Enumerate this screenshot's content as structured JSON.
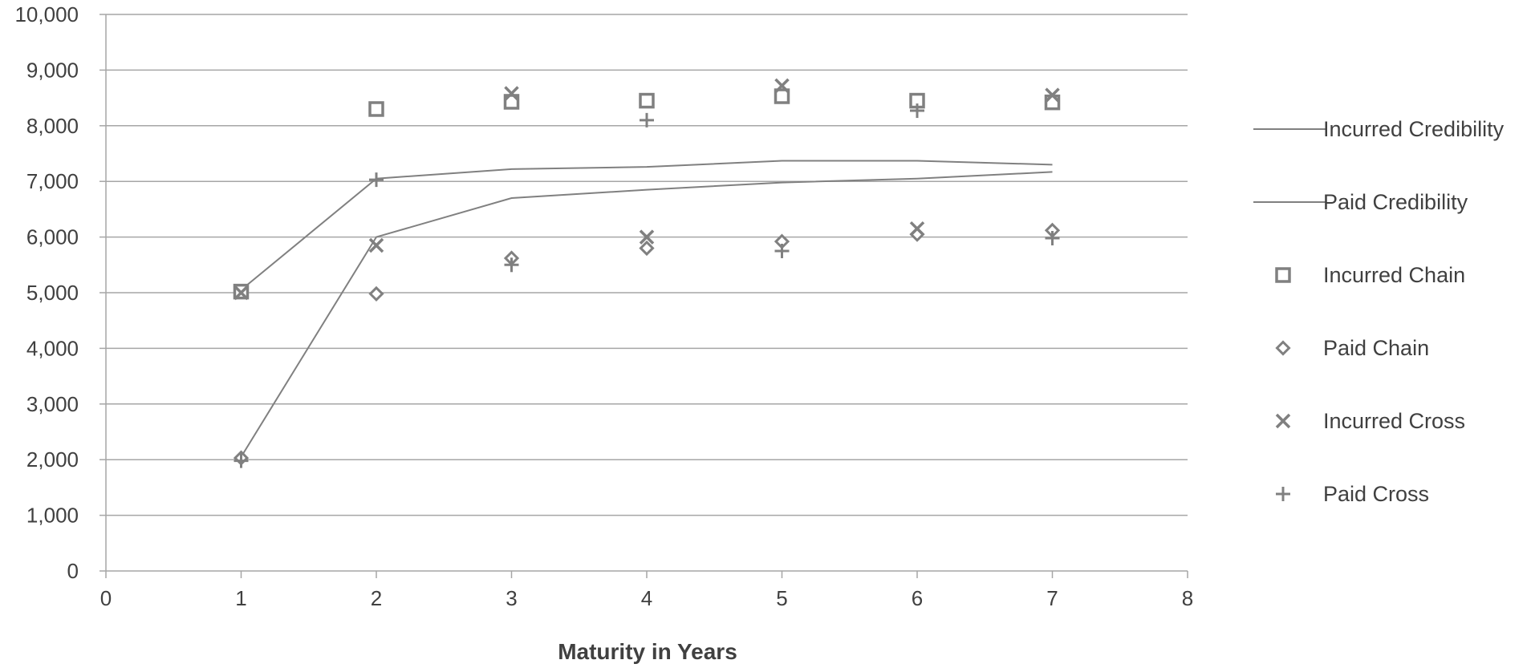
{
  "chart_data": {
    "type": "scatter",
    "title": "",
    "xlabel": "Maturity in Years",
    "ylabel": "",
    "xlim": [
      0,
      8
    ],
    "ylim": [
      0,
      10000
    ],
    "x_ticks": [
      0,
      1,
      2,
      3,
      4,
      5,
      6,
      7,
      8
    ],
    "x_tick_labels": [
      "0",
      "1",
      "2",
      "3",
      "4",
      "5",
      "6",
      "7",
      "8"
    ],
    "y_ticks": [
      0,
      1000,
      2000,
      3000,
      4000,
      5000,
      6000,
      7000,
      8000,
      9000,
      10000
    ],
    "y_tick_labels": [
      "0",
      "1,000",
      "2,000",
      "3,000",
      "4,000",
      "5,000",
      "6,000",
      "7,000",
      "8,000",
      "9,000",
      "10,000"
    ],
    "grid": "horizontal",
    "legend_position": "right",
    "series_color": "#808080",
    "line_color": "#808080",
    "series": [
      {
        "name": "Incurred Credibility",
        "kind": "line",
        "marker": "none",
        "x": [
          1,
          2,
          3,
          4,
          5,
          6,
          7
        ],
        "y": [
          5050,
          7050,
          7220,
          7260,
          7370,
          7370,
          7300
        ]
      },
      {
        "name": "Paid Credibility",
        "kind": "line",
        "marker": "none",
        "x": [
          1,
          2,
          3,
          4,
          5,
          6,
          7
        ],
        "y": [
          2050,
          6000,
          6700,
          6850,
          6980,
          7050,
          7170
        ]
      },
      {
        "name": "Incurred Chain",
        "kind": "scatter",
        "marker": "square",
        "x": [
          1,
          2,
          3,
          4,
          5,
          6,
          7
        ],
        "y": [
          5020,
          8300,
          8430,
          8450,
          8530,
          8450,
          8420
        ]
      },
      {
        "name": "Paid Chain",
        "kind": "scatter",
        "marker": "diamond",
        "x": [
          1,
          2,
          3,
          4,
          5,
          6,
          7
        ],
        "y": [
          2030,
          4980,
          5620,
          5800,
          5920,
          6050,
          6120
        ]
      },
      {
        "name": "Incurred Cross",
        "kind": "scatter",
        "marker": "x",
        "x": [
          1,
          2,
          3,
          4,
          5,
          6,
          7
        ],
        "y": [
          5000,
          5850,
          8580,
          6000,
          8720,
          6150,
          8550
        ]
      },
      {
        "name": "Paid Cross",
        "kind": "scatter",
        "marker": "plus",
        "x": [
          1,
          2,
          3,
          4,
          5,
          6,
          7
        ],
        "y": [
          1980,
          7030,
          5500,
          8100,
          5750,
          8270,
          5980
        ]
      }
    ]
  }
}
